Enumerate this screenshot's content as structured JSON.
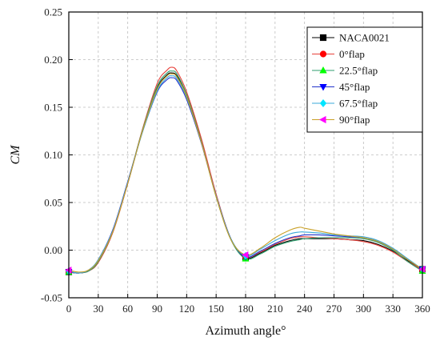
{
  "chart_data": {
    "type": "line",
    "xlabel": "Azimuth angle°",
    "ylabel": "CM",
    "xlim": [
      0,
      360
    ],
    "ylim": [
      -0.05,
      0.25
    ],
    "xticks": [
      0,
      30,
      60,
      90,
      120,
      150,
      180,
      210,
      240,
      270,
      300,
      330,
      360
    ],
    "yticks": [
      -0.05,
      0.0,
      0.05,
      0.1,
      0.15,
      0.2,
      0.25
    ],
    "ytick_labels": [
      "-0.05",
      "0.00",
      "0.05",
      "0.10",
      "0.15",
      "0.20",
      "0.25"
    ],
    "grid": true,
    "legend_position": "top-right",
    "x": [
      0,
      10,
      20,
      30,
      45,
      60,
      75,
      90,
      100,
      105,
      110,
      120,
      135,
      150,
      165,
      180,
      195,
      210,
      225,
      235,
      240,
      255,
      270,
      285,
      300,
      315,
      330,
      345,
      360
    ],
    "series": [
      {
        "name": "NACA0021",
        "marker": "square",
        "color": "#000000",
        "values": [
          -0.023,
          -0.024,
          -0.022,
          -0.012,
          0.02,
          0.07,
          0.125,
          0.17,
          0.184,
          0.186,
          0.183,
          0.163,
          0.115,
          0.058,
          0.012,
          -0.008,
          -0.003,
          0.005,
          0.01,
          0.012,
          0.012,
          0.012,
          0.012,
          0.011,
          0.01,
          0.006,
          -0.001,
          -0.011,
          -0.02
        ]
      },
      {
        "name": "0°flap",
        "marker": "circle",
        "color": "#ff0000",
        "values": [
          -0.023,
          -0.024,
          -0.022,
          -0.013,
          0.019,
          0.07,
          0.127,
          0.175,
          0.189,
          0.192,
          0.188,
          0.166,
          0.117,
          0.059,
          0.012,
          -0.007,
          -0.002,
          0.006,
          0.012,
          0.014,
          0.014,
          0.013,
          0.012,
          0.011,
          0.009,
          0.005,
          -0.002,
          -0.012,
          -0.021
        ]
      },
      {
        "name": "22.5°flap",
        "marker": "triangle-up",
        "color": "#00ff00",
        "values": [
          -0.023,
          -0.024,
          -0.022,
          -0.012,
          0.02,
          0.071,
          0.126,
          0.172,
          0.186,
          0.188,
          0.185,
          0.163,
          0.114,
          0.056,
          0.011,
          -0.009,
          -0.004,
          0.004,
          0.009,
          0.011,
          0.012,
          0.013,
          0.013,
          0.013,
          0.012,
          0.008,
          0.0,
          -0.012,
          -0.022
        ]
      },
      {
        "name": "45°flap",
        "marker": "triangle-down",
        "color": "#0000ff",
        "values": [
          -0.023,
          -0.024,
          -0.021,
          -0.01,
          0.022,
          0.072,
          0.124,
          0.166,
          0.179,
          0.181,
          0.178,
          0.158,
          0.112,
          0.057,
          0.012,
          -0.007,
          -0.001,
          0.007,
          0.013,
          0.015,
          0.016,
          0.016,
          0.015,
          0.014,
          0.013,
          0.009,
          0.001,
          -0.01,
          -0.02
        ]
      },
      {
        "name": "67.5°flap",
        "marker": "diamond",
        "color": "#00e5ff",
        "values": [
          -0.022,
          -0.024,
          -0.021,
          -0.01,
          0.021,
          0.071,
          0.124,
          0.167,
          0.181,
          0.183,
          0.18,
          0.16,
          0.113,
          0.057,
          0.012,
          -0.006,
          0.001,
          0.01,
          0.017,
          0.019,
          0.019,
          0.018,
          0.016,
          0.015,
          0.014,
          0.01,
          0.002,
          -0.009,
          -0.02
        ]
      },
      {
        "name": "90°flap",
        "marker": "triangle-left",
        "color": "#ff00ff",
        "values": [
          -0.021,
          -0.023,
          -0.021,
          -0.011,
          0.02,
          0.07,
          0.125,
          0.169,
          0.183,
          0.185,
          0.182,
          0.161,
          0.113,
          0.056,
          0.011,
          -0.005,
          0.002,
          0.013,
          0.021,
          0.024,
          0.023,
          0.02,
          0.017,
          0.015,
          0.013,
          0.009,
          0.001,
          -0.01,
          -0.02
        ]
      }
    ],
    "line_colors": [
      "#000000",
      "#e8413a",
      "#2e9e6e",
      "#2233cc",
      "#3aa8d8",
      "#c9a027"
    ]
  }
}
